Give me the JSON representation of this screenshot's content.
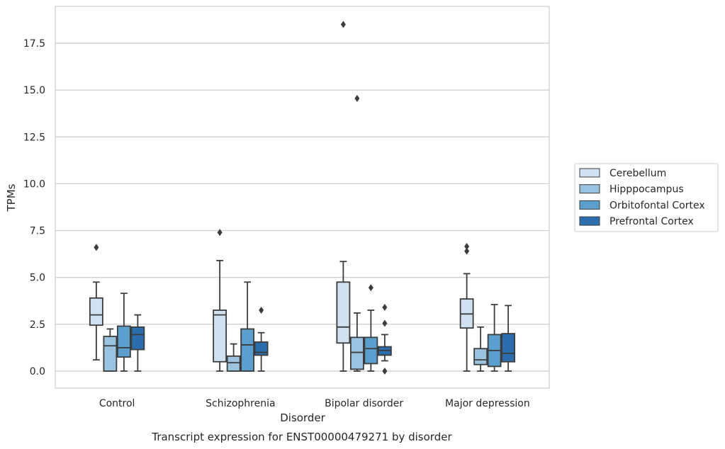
{
  "chart_data": {
    "type": "box",
    "xlabel": "Disorder",
    "ylabel": "TPMs",
    "caption": "Transcript expression for ENST00000479271 by disorder",
    "categories": [
      "Control",
      "Schizophrenia",
      "Bipolar disorder",
      "Major depression"
    ],
    "ylim": [
      -0.9,
      19.4
    ],
    "yticks": [
      0.0,
      2.5,
      5.0,
      7.5,
      10.0,
      12.5,
      15.0,
      17.5
    ],
    "ytick_labels": [
      "0.0",
      "2.5",
      "5.0",
      "7.5",
      "10.0",
      "12.5",
      "15.0",
      "17.5"
    ],
    "grid": "horizontal",
    "legend_position": "right",
    "series": [
      {
        "name": "Cerebellum",
        "color": "#d0e1f2",
        "boxes": [
          {
            "whisker_low": 0.6,
            "q1": 2.45,
            "median": 3.0,
            "q3": 3.9,
            "whisker_high": 4.75,
            "outliers": [
              6.6
            ]
          },
          {
            "whisker_low": 0.0,
            "q1": 0.5,
            "median": 3.0,
            "q3": 3.25,
            "whisker_high": 5.9,
            "outliers": [
              7.4
            ]
          },
          {
            "whisker_low": 0.0,
            "q1": 1.5,
            "median": 2.35,
            "q3": 4.75,
            "whisker_high": 5.85,
            "outliers": [
              18.5
            ]
          },
          {
            "whisker_low": 0.0,
            "q1": 2.3,
            "median": 3.05,
            "q3": 3.85,
            "whisker_high": 5.2,
            "outliers": [
              6.4,
              6.65
            ]
          }
        ]
      },
      {
        "name": "Hipppocampus",
        "color": "#9ac3e0",
        "boxes": [
          {
            "whisker_low": 0.0,
            "q1": 0.0,
            "median": 1.35,
            "q3": 1.85,
            "whisker_high": 2.25,
            "outliers": []
          },
          {
            "whisker_low": 0.0,
            "q1": 0.0,
            "median": 0.45,
            "q3": 0.8,
            "whisker_high": 1.45,
            "outliers": []
          },
          {
            "whisker_low": 0.0,
            "q1": 0.1,
            "median": 1.0,
            "q3": 1.8,
            "whisker_high": 3.1,
            "outliers": [
              14.55
            ]
          },
          {
            "whisker_low": 0.0,
            "q1": 0.35,
            "median": 0.6,
            "q3": 1.2,
            "whisker_high": 2.35,
            "outliers": []
          }
        ]
      },
      {
        "name": "Orbitofontal Cortex",
        "color": "#5a9fcd",
        "boxes": [
          {
            "whisker_low": 0.0,
            "q1": 0.75,
            "median": 1.25,
            "q3": 2.4,
            "whisker_high": 4.15,
            "outliers": []
          },
          {
            "whisker_low": 0.0,
            "q1": 0.0,
            "median": 1.4,
            "q3": 2.25,
            "whisker_high": 4.75,
            "outliers": []
          },
          {
            "whisker_low": 0.0,
            "q1": 0.4,
            "median": 1.2,
            "q3": 1.8,
            "whisker_high": 3.25,
            "outliers": [
              4.45
            ]
          },
          {
            "whisker_low": 0.0,
            "q1": 0.25,
            "median": 1.1,
            "q3": 1.95,
            "whisker_high": 3.55,
            "outliers": []
          }
        ]
      },
      {
        "name": "Prefrontal Cortex",
        "color": "#2c6ead",
        "boxes": [
          {
            "whisker_low": 0.0,
            "q1": 1.15,
            "median": 1.95,
            "q3": 2.35,
            "whisker_high": 3.0,
            "outliers": []
          },
          {
            "whisker_low": 0.0,
            "q1": 0.85,
            "median": 1.0,
            "q3": 1.55,
            "whisker_high": 2.05,
            "outliers": [
              3.25
            ]
          },
          {
            "whisker_low": 0.55,
            "q1": 0.85,
            "median": 1.1,
            "q3": 1.3,
            "whisker_high": 1.95,
            "outliers": [
              0.0,
              2.55,
              3.4
            ]
          },
          {
            "whisker_low": 0.0,
            "q1": 0.5,
            "median": 0.95,
            "q3": 2.0,
            "whisker_high": 3.5,
            "outliers": []
          }
        ]
      }
    ]
  }
}
